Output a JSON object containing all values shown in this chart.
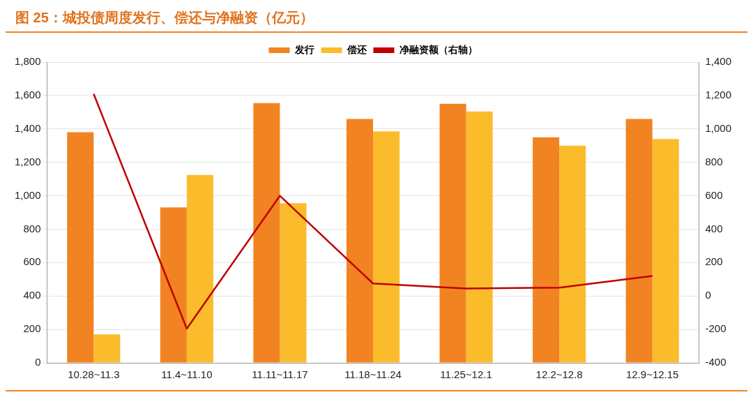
{
  "chart_data": {
    "type": "bar",
    "title": "图 25：城投债周度发行、偿还与净融资（亿元）",
    "categories": [
      "10.28~11.3",
      "11.4~11.10",
      "11.11~11.17",
      "11.18~11.24",
      "11.25~12.1",
      "12.2~12.8",
      "12.9~12.15"
    ],
    "series": [
      {
        "name": "发行",
        "color": "#f28322",
        "values": [
          1380,
          930,
          1555,
          1460,
          1550,
          1350,
          1460
        ]
      },
      {
        "name": "偿还",
        "color": "#fbbc2c",
        "values": [
          170,
          1125,
          955,
          1385,
          1505,
          1300,
          1340
        ]
      },
      {
        "name": "净融资额（右轴）",
        "type": "line",
        "axis": "y2",
        "color": "#c00000",
        "values": [
          1210,
          -195,
          600,
          75,
          45,
          50,
          120
        ]
      }
    ],
    "ylim": [
      0,
      1800
    ],
    "yticks": [
      0,
      200,
      400,
      600,
      800,
      {
        "value": 1000,
        "label": "1,000"
      },
      {
        "value": 1200,
        "label": "1,200"
      },
      {
        "value": 1400,
        "label": "1,400"
      },
      {
        "value": 1600,
        "label": "1,600"
      },
      {
        "value": 1800,
        "label": "1,800"
      }
    ],
    "y2lim": [
      -400,
      1400
    ],
    "y2ticks": [
      -400,
      -200,
      0,
      200,
      400,
      600,
      800,
      {
        "value": 1000,
        "label": "1,000"
      },
      {
        "value": 1200,
        "label": "1,200"
      },
      {
        "value": 1400,
        "label": "1,400"
      }
    ],
    "grid": "y",
    "legend": "top",
    "marker": "none",
    "line_style": "solid"
  }
}
